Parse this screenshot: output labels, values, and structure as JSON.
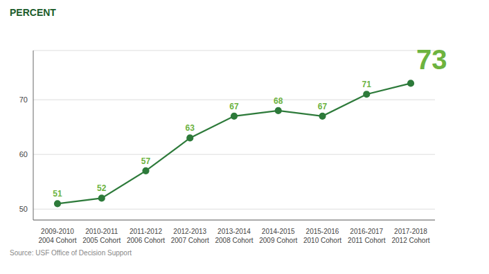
{
  "chart_data": {
    "type": "line",
    "ylabel": "PERCENT",
    "source": "Source: USF Office of Decision Support",
    "categories": [
      "2009-2010\n2004 Cohort",
      "2010-2011\n2005 Cohort",
      "2011-2012\n2006 Cohort",
      "2012-2013\n2007 Cohort",
      "2013-2014\n2008 Cohort",
      "2014-2015\n2009 Cohort",
      "2015-2016\n2010 Cohort",
      "2016-2017\n2011 Cohort",
      "2017-2018\n2012 Cohort"
    ],
    "values": [
      51,
      52,
      57,
      63,
      67,
      68,
      67,
      71,
      73
    ],
    "color": "#2d7a3a",
    "ylim": [
      48,
      79
    ],
    "yticks": [
      50,
      60,
      70
    ],
    "grid": true,
    "data_labels": true,
    "marker": "circle"
  }
}
